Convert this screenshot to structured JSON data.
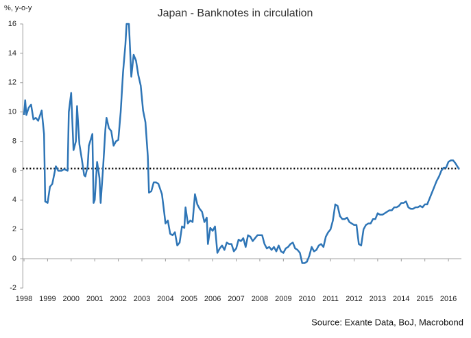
{
  "chart_data": {
    "type": "line",
    "title": "Japan - Banknotes in circulation",
    "y_label": "%, y-o-y",
    "source": "Source: Exante Data, BoJ, Macrobond",
    "x": [
      1998.0,
      1998.05,
      1998.1,
      1998.2,
      1998.3,
      1998.4,
      1998.5,
      1998.6,
      1998.75,
      1998.85,
      1998.9,
      1999.0,
      1999.1,
      1999.2,
      1999.35,
      1999.45,
      1999.6,
      1999.7,
      1999.85,
      1999.9,
      2000.0,
      2000.1,
      2000.2,
      2000.25,
      2000.35,
      2000.45,
      2000.55,
      2000.6,
      2000.7,
      2000.75,
      2000.9,
      2000.95,
      2001.0,
      2001.1,
      2001.2,
      2001.25,
      2001.35,
      2001.45,
      2001.5,
      2001.6,
      2001.7,
      2001.8,
      2001.9,
      2002.0,
      2002.1,
      2002.2,
      2002.3,
      2002.35,
      2002.45,
      2002.55,
      2002.65,
      2002.75,
      2002.85,
      2002.95,
      2003.05,
      2003.15,
      2003.25,
      2003.3,
      2003.4,
      2003.5,
      2003.6,
      2003.7,
      2003.85,
      2003.95,
      2004.0,
      2004.1,
      2004.2,
      2004.3,
      2004.4,
      2004.5,
      2004.6,
      2004.7,
      2004.8,
      2004.85,
      2004.95,
      2005.05,
      2005.15,
      2005.25,
      2005.35,
      2005.45,
      2005.55,
      2005.65,
      2005.75,
      2005.8,
      2005.9,
      2006.0,
      2006.1,
      2006.2,
      2006.3,
      2006.4,
      2006.5,
      2006.6,
      2006.7,
      2006.8,
      2006.9,
      2007.0,
      2007.1,
      2007.2,
      2007.3,
      2007.4,
      2007.5,
      2007.6,
      2007.7,
      2007.8,
      2007.9,
      2008.0,
      2008.1,
      2008.2,
      2008.3,
      2008.4,
      2008.5,
      2008.6,
      2008.7,
      2008.8,
      2008.9,
      2009.0,
      2009.1,
      2009.2,
      2009.3,
      2009.4,
      2009.5,
      2009.6,
      2009.7,
      2009.8,
      2009.9,
      2010.0,
      2010.1,
      2010.2,
      2010.3,
      2010.4,
      2010.5,
      2010.6,
      2010.7,
      2010.8,
      2010.9,
      2011.0,
      2011.1,
      2011.2,
      2011.3,
      2011.4,
      2011.5,
      2011.6,
      2011.7,
      2011.8,
      2011.9,
      2012.0,
      2012.1,
      2012.2,
      2012.3,
      2012.4,
      2012.5,
      2012.6,
      2012.7,
      2012.8,
      2012.9,
      2013.0,
      2013.1,
      2013.2,
      2013.3,
      2013.4,
      2013.5,
      2013.6,
      2013.7,
      2013.8,
      2013.9,
      2014.0,
      2014.1,
      2014.2,
      2014.3,
      2014.4,
      2014.5,
      2014.6,
      2014.7,
      2014.8,
      2014.9,
      2015.0,
      2015.1,
      2015.2,
      2015.3,
      2015.4,
      2015.5,
      2015.6,
      2015.7,
      2015.8,
      2015.9,
      2016.0,
      2016.1,
      2016.2,
      2016.3,
      2016.45
    ],
    "values": [
      9.8,
      10.8,
      9.8,
      10.3,
      10.5,
      9.5,
      9.6,
      9.4,
      10.1,
      8.5,
      3.9,
      3.8,
      4.9,
      5.1,
      6.3,
      6.0,
      6.0,
      6.1,
      6.0,
      10.0,
      11.3,
      7.4,
      8.0,
      10.4,
      7.8,
      6.8,
      5.7,
      5.6,
      6.3,
      7.7,
      8.5,
      3.8,
      4.0,
      6.6,
      5.5,
      3.8,
      6.1,
      8.8,
      9.6,
      8.9,
      8.7,
      7.7,
      8.0,
      8.1,
      10.0,
      12.7,
      14.6,
      16,
      16,
      12.4,
      13.9,
      13.5,
      12.5,
      11.8,
      10.1,
      9.3,
      7.0,
      4.5,
      4.6,
      5.2,
      5.2,
      5.1,
      4.4,
      3.1,
      2.4,
      2.6,
      1.7,
      1.6,
      1.8,
      0.9,
      1.1,
      2.2,
      2.1,
      3.5,
      2.4,
      2.6,
      2.5,
      4.4,
      3.7,
      3.4,
      3.2,
      2.5,
      2.8,
      1.0,
      2.1,
      1.9,
      2.2,
      0.4,
      0.7,
      0.9,
      0.6,
      1.1,
      1.0,
      1.0,
      0.5,
      0.7,
      1.3,
      1.2,
      1.4,
      0.8,
      1.6,
      1.5,
      1.2,
      1.4,
      1.6,
      1.6,
      1.6,
      1.0,
      0.7,
      0.8,
      0.6,
      0.8,
      0.5,
      0.9,
      0.5,
      0.4,
      0.7,
      0.8,
      1.0,
      1.1,
      0.7,
      0.6,
      0.4,
      -0.3,
      -0.3,
      -0.2,
      0.2,
      0.8,
      0.5,
      0.6,
      0.9,
      1.0,
      0.8,
      1.5,
      1.8,
      2.0,
      2.6,
      3.7,
      3.6,
      2.9,
      2.7,
      2.7,
      2.8,
      2.5,
      2.4,
      2.3,
      2.3,
      1.0,
      0.9,
      2.0,
      2.3,
      2.4,
      2.4,
      2.7,
      2.7,
      3.1,
      3.0,
      3.0,
      3.1,
      3.2,
      3.3,
      3.3,
      3.5,
      3.5,
      3.6,
      3.8,
      3.8,
      3.9,
      3.5,
      3.4,
      3.4,
      3.5,
      3.5,
      3.6,
      3.5,
      3.7,
      3.7,
      4.1,
      4.5,
      4.9,
      5.3,
      5.6,
      6.0,
      6.2,
      6.2,
      6.6,
      6.7,
      6.7,
      6.5,
      6.1
    ],
    "color": "#2e75b6",
    "reference_line": 6.15,
    "reference_color": "#000000",
    "xlim": [
      1997.95,
      2016.55
    ],
    "xticks": [
      1998,
      1999,
      2000,
      2001,
      2002,
      2003,
      2004,
      2005,
      2006,
      2007,
      2008,
      2009,
      2010,
      2011,
      2012,
      2013,
      2014,
      2015,
      2016
    ],
    "ylim": [
      -2,
      16
    ],
    "yticks": [
      -2,
      0,
      2,
      4,
      6,
      8,
      10,
      12,
      14,
      16
    ]
  }
}
